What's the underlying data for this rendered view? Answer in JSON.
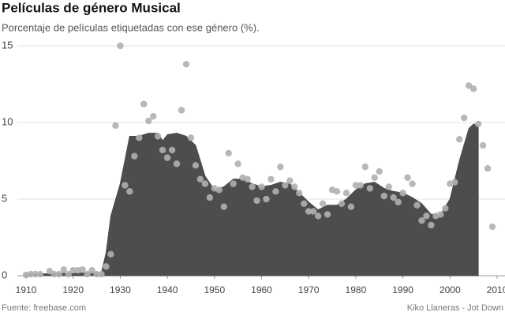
{
  "chart_data": {
    "type": "area",
    "title": "Películas de género Musical",
    "subtitle": "Porcentaje de películas etiquetadas con ese género (%).",
    "source": "Fuente: freebase.com",
    "credit": "Kiko Llaneras - Jot Down",
    "xlim": [
      1910,
      2010
    ],
    "xticks": [
      1910,
      1920,
      1930,
      1940,
      1950,
      1960,
      1970,
      1980,
      1990,
      2000,
      2010
    ],
    "ylim": [
      0,
      15
    ],
    "yticks": [
      0,
      5,
      10,
      15
    ],
    "grid": true,
    "series": [
      {
        "type": "area",
        "color": "#4d4d4d",
        "x": [
          1910,
          1925,
          1926,
          1927,
          1928,
          1930,
          1932,
          1934,
          1936,
          1938,
          1939,
          1940,
          1942,
          1944,
          1946,
          1948,
          1950,
          1952,
          1954,
          1956,
          1958,
          1960,
          1962,
          1964,
          1966,
          1968,
          1970,
          1972,
          1974,
          1976,
          1978,
          1980,
          1982,
          1984,
          1986,
          1988,
          1990,
          1992,
          1994,
          1996,
          1998,
          2000,
          2002,
          2004,
          2005,
          2006
        ],
        "values": [
          0.1,
          0.2,
          0.2,
          1.5,
          3.9,
          6,
          9.1,
          9.1,
          9.3,
          9.3,
          8.8,
          9.2,
          9.3,
          9.1,
          8.5,
          6.5,
          5.6,
          5.8,
          6.3,
          6.3,
          6.0,
          5.8,
          5.9,
          6.1,
          6.0,
          5.4,
          4.8,
          4.3,
          4.6,
          4.6,
          5.0,
          5.6,
          6.0,
          6.1,
          5.7,
          5.5,
          5.4,
          5.1,
          4.7,
          4.0,
          4.0,
          5.0,
          7.5,
          9.6,
          9.9,
          9.8
        ]
      },
      {
        "type": "scatter",
        "color": "#b0b0b0",
        "x": [
          1910,
          1911,
          1912,
          1913,
          1915,
          1916,
          1917,
          1918,
          1919,
          1920,
          1921,
          1922,
          1923,
          1924,
          1925,
          1926,
          1927,
          1928,
          1929,
          1930,
          1931,
          1932,
          1933,
          1934,
          1935,
          1936,
          1937,
          1938,
          1939,
          1940,
          1941,
          1942,
          1943,
          1944,
          1945,
          1946,
          1947,
          1948,
          1949,
          1950,
          1951,
          1952,
          1953,
          1954,
          1955,
          1956,
          1957,
          1958,
          1959,
          1960,
          1961,
          1962,
          1963,
          1964,
          1965,
          1966,
          1967,
          1968,
          1969,
          1970,
          1971,
          1972,
          1973,
          1974,
          1975,
          1976,
          1977,
          1978,
          1979,
          1980,
          1981,
          1982,
          1983,
          1984,
          1985,
          1986,
          1987,
          1988,
          1989,
          1990,
          1991,
          1992,
          1993,
          1994,
          1995,
          1996,
          1997,
          1998,
          1999,
          2000,
          2001,
          2002,
          2003,
          2004,
          2005,
          2006,
          2007,
          2008,
          2009
        ],
        "values": [
          0.05,
          0.1,
          0.1,
          0.1,
          0.3,
          0.1,
          0.1,
          0.4,
          0.1,
          0.35,
          0.35,
          0.4,
          0.1,
          0.35,
          0.1,
          0.1,
          0.6,
          1.4,
          9.8,
          15,
          5.9,
          5.5,
          7.8,
          9.0,
          11.2,
          10.1,
          10.4,
          9.1,
          8.2,
          7.7,
          8.2,
          7.3,
          10.8,
          13.8,
          9.0,
          7.2,
          6.3,
          6.0,
          5.1,
          5.7,
          5.6,
          4.5,
          8.0,
          6.0,
          7.3,
          6.4,
          6.3,
          5.8,
          4.9,
          5.8,
          5.0,
          6.3,
          5.5,
          7.1,
          5.9,
          6.2,
          5.8,
          5.4,
          4.7,
          4.2,
          4.2,
          3.9,
          4.7,
          4.0,
          5.6,
          5.5,
          4.7,
          5.4,
          4.5,
          5.9,
          5.9,
          7.1,
          5.7,
          6.4,
          6.8,
          5.2,
          5.8,
          5.1,
          4.8,
          5.4,
          6.4,
          6.0,
          4.6,
          3.6,
          3.9,
          3.3,
          3.9,
          4.0,
          4.4,
          6.0,
          6.1,
          8.9,
          10.3,
          12.4,
          12.2,
          9.9,
          8.5,
          7.0,
          3.2
        ]
      }
    ]
  }
}
